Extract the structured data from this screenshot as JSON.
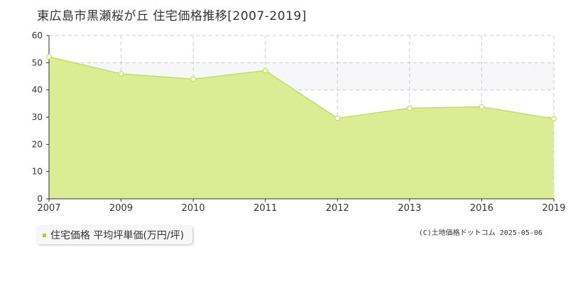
{
  "title": "東広島市黒瀬桜が丘 住宅価格推移[2007-2019]",
  "legend": {
    "label": "住宅価格 平均坪単価(万円/坪)"
  },
  "credit": "(C)土地価格ドットコム 2025-05-06",
  "colors": {
    "fill": "#dbec94",
    "line": "#c3e05a",
    "grid": "#cccccc",
    "axis": "#333333",
    "point_fill": "#ffffff",
    "legend_swatch": "#a8d12a"
  },
  "chart_data": {
    "type": "area",
    "x": [
      "2007",
      "2009",
      "2010",
      "2011",
      "2012",
      "2013",
      "2016",
      "2019"
    ],
    "series": [
      {
        "values": [
          52.2,
          45.9,
          44.0,
          47.1,
          29.6,
          33.3,
          33.8,
          29.4
        ]
      }
    ],
    "yticks": [
      0,
      10,
      20,
      30,
      40,
      50,
      60
    ],
    "ylim": [
      0,
      60
    ],
    "xlabel": "",
    "ylabel": "",
    "grid": true,
    "legend_position": "bottom-left"
  }
}
